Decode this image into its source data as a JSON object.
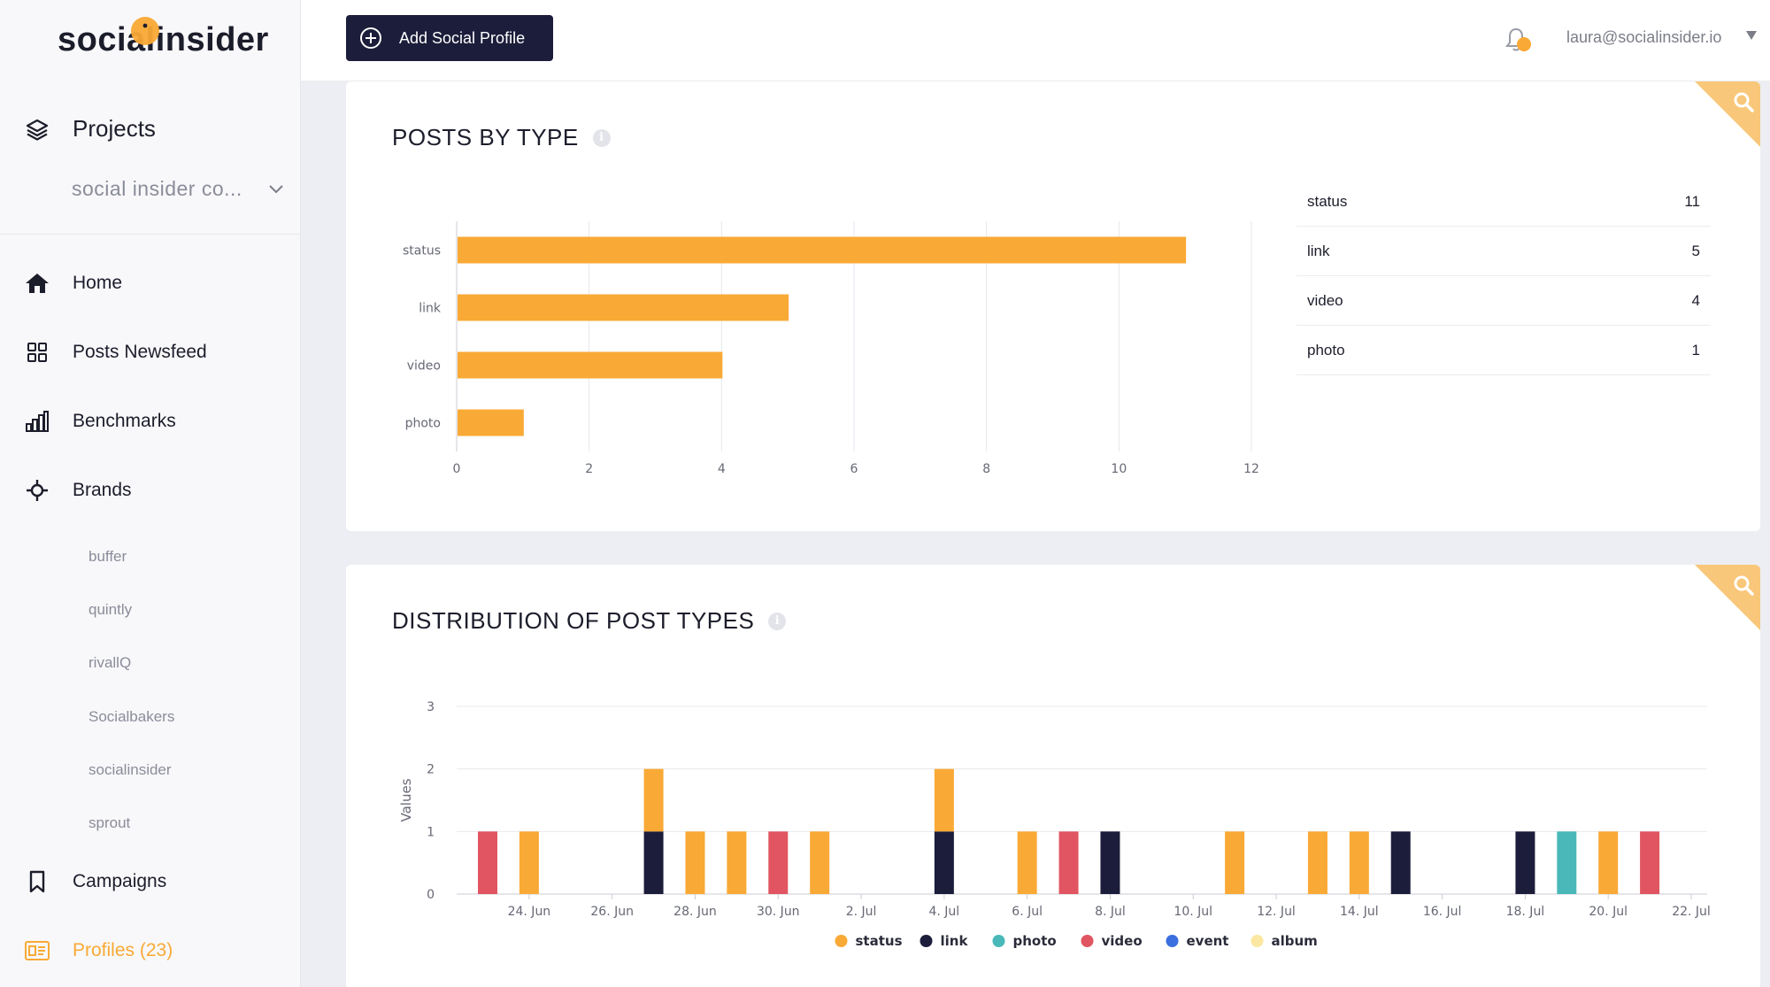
{
  "app": {
    "logo_text": "socialinsider"
  },
  "sidebar": {
    "projects_label": "Projects",
    "project_select": "social insider co...",
    "nav": [
      {
        "label": "Home",
        "icon": "home-icon"
      },
      {
        "label": "Posts Newsfeed",
        "icon": "grid-icon"
      },
      {
        "label": "Benchmarks",
        "icon": "bar-chart-icon"
      },
      {
        "label": "Brands",
        "icon": "brands-icon"
      }
    ],
    "brands": [
      "buffer",
      "quintly",
      "rivallQ",
      "Socialbakers",
      "socialinsider",
      "sprout"
    ],
    "campaigns_label": "Campaigns",
    "profiles_label": "Profiles (23)"
  },
  "topbar": {
    "add_profile_label": "Add Social Profile",
    "user_email": "laura@socialinsider.io"
  },
  "colors": {
    "accent": "#f9a935",
    "navy": "#1c1d3a",
    "status": "#f9a935",
    "link": "#1c1d3a",
    "photo": "#4ab8b8",
    "video": "#e05561",
    "event": "#3b6fe0",
    "album": "#fbe7a1"
  },
  "posts_by_type": {
    "title": "POSTS BY TYPE",
    "table": [
      {
        "label": "status",
        "value": "11"
      },
      {
        "label": "link",
        "value": "5"
      },
      {
        "label": "video",
        "value": "4"
      },
      {
        "label": "photo",
        "value": "1"
      }
    ]
  },
  "distribution": {
    "title": "DISTRIBUTION OF POST TYPES"
  },
  "chart_data": [
    {
      "type": "bar",
      "orientation": "horizontal",
      "title": "POSTS BY TYPE",
      "categories": [
        "status",
        "link",
        "video",
        "photo"
      ],
      "values": [
        11,
        5,
        4,
        1
      ],
      "xlim": [
        0,
        12
      ],
      "x_ticks": [
        "0",
        "2",
        "4",
        "6",
        "8",
        "10",
        "12"
      ],
      "grid": true,
      "color": "#f9a935"
    },
    {
      "type": "bar",
      "stacked": true,
      "title": "DISTRIBUTION OF POST TYPES",
      "ylabel": "Values",
      "ylim": [
        0,
        3
      ],
      "y_ticks": [
        "0",
        "1",
        "2",
        "3"
      ],
      "x_ticks": [
        "24. Jun",
        "26. Jun",
        "28. Jun",
        "30. Jun",
        "2. Jul",
        "4. Jul",
        "6. Jul",
        "8. Jul",
        "10. Jul",
        "12. Jul",
        "14. Jul",
        "16. Jul",
        "18. Jul",
        "20. Jul",
        "22. Jul"
      ],
      "legend": [
        "status",
        "link",
        "photo",
        "video",
        "event",
        "album"
      ],
      "legend_position": "bottom",
      "x": [
        "23. Jun",
        "24. Jun",
        "25. Jun",
        "26. Jun",
        "27. Jun",
        "28. Jun",
        "29. Jun",
        "30. Jun",
        "1. Jul",
        "2. Jul",
        "3. Jul",
        "4. Jul",
        "5. Jul",
        "6. Jul",
        "7. Jul",
        "8. Jul",
        "9. Jul",
        "10. Jul",
        "11. Jul",
        "12. Jul",
        "13. Jul",
        "14. Jul",
        "15. Jul",
        "16. Jul",
        "17. Jul",
        "18. Jul",
        "19. Jul",
        "20. Jul",
        "21. Jul",
        "22. Jul"
      ],
      "series": [
        {
          "name": "status",
          "values": [
            0,
            1,
            0,
            0,
            1,
            1,
            1,
            0,
            1,
            0,
            0,
            1,
            0,
            1,
            0,
            0,
            0,
            0,
            1,
            0,
            1,
            1,
            0,
            0,
            0,
            0,
            0,
            1,
            0,
            0
          ]
        },
        {
          "name": "link",
          "values": [
            0,
            0,
            0,
            0,
            1,
            0,
            0,
            0,
            0,
            0,
            0,
            1,
            0,
            0,
            0,
            1,
            0,
            0,
            0,
            0,
            0,
            0,
            1,
            0,
            0,
            1,
            0,
            0,
            0,
            0
          ]
        },
        {
          "name": "photo",
          "values": [
            0,
            0,
            0,
            0,
            0,
            0,
            0,
            0,
            0,
            0,
            0,
            0,
            0,
            0,
            0,
            0,
            0,
            0,
            0,
            0,
            0,
            0,
            0,
            0,
            0,
            0,
            1,
            0,
            0,
            0
          ]
        },
        {
          "name": "video",
          "values": [
            1,
            0,
            0,
            0,
            0,
            0,
            0,
            1,
            0,
            0,
            0,
            0,
            0,
            0,
            1,
            0,
            0,
            0,
            0,
            0,
            0,
            0,
            0,
            0,
            0,
            0,
            0,
            0,
            1,
            0
          ]
        },
        {
          "name": "event",
          "values": [
            0,
            0,
            0,
            0,
            0,
            0,
            0,
            0,
            0,
            0,
            0,
            0,
            0,
            0,
            0,
            0,
            0,
            0,
            0,
            0,
            0,
            0,
            0,
            0,
            0,
            0,
            0,
            0,
            0,
            0
          ]
        },
        {
          "name": "album",
          "values": [
            0,
            0,
            0,
            0,
            0,
            0,
            0,
            0,
            0,
            0,
            0,
            0,
            0,
            0,
            0,
            0,
            0,
            0,
            0,
            0,
            0,
            0,
            0,
            0,
            0,
            0,
            0,
            0,
            0,
            0
          ]
        }
      ],
      "stack_order": [
        "link",
        "photo",
        "video",
        "status"
      ]
    }
  ]
}
